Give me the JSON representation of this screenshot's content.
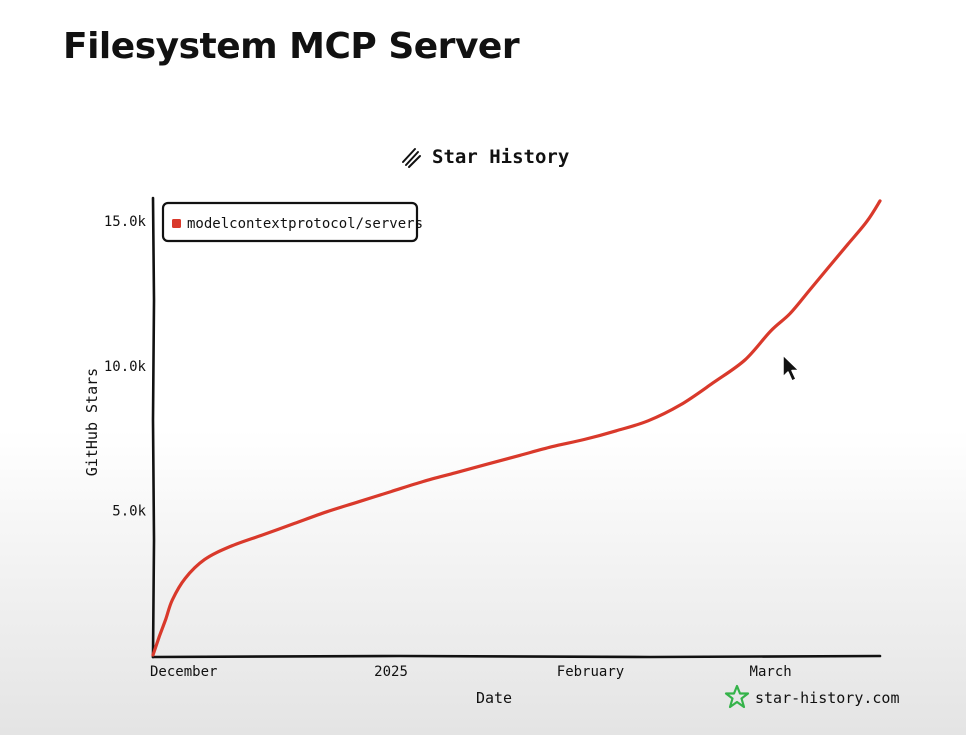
{
  "page": {
    "title": "Filesystem MCP Server"
  },
  "chart_data": {
    "type": "line",
    "title": "Star History",
    "xlabel": "Date",
    "ylabel": "GitHub Stars",
    "x_ticks": [
      "December",
      "2025",
      "February",
      "March"
    ],
    "y_ticks": [
      "5.0k",
      "10.0k",
      "15.0k"
    ],
    "ylim": [
      0,
      15800
    ],
    "xlim": [
      "2024-11-25",
      "2025-03-18"
    ],
    "grid": false,
    "legend_position": "top-left",
    "series": [
      {
        "name": "modelcontextprotocol/servers",
        "color": "#d9392b",
        "x": [
          "2024-11-25",
          "2024-11-26",
          "2024-11-27",
          "2024-11-28",
          "2024-11-30",
          "2024-12-03",
          "2024-12-07",
          "2024-12-12",
          "2024-12-17",
          "2024-12-22",
          "2024-12-27",
          "2025-01-01",
          "2025-01-06",
          "2025-01-11",
          "2025-01-16",
          "2025-01-21",
          "2025-01-26",
          "2025-01-31",
          "2025-02-05",
          "2025-02-10",
          "2025-02-15",
          "2025-02-20",
          "2025-02-25",
          "2025-03-01",
          "2025-03-04",
          "2025-03-07",
          "2025-03-10",
          "2025-03-13",
          "2025-03-16",
          "2025-03-18"
        ],
        "values": [
          0,
          650,
          1250,
          1900,
          2650,
          3300,
          3750,
          4150,
          4550,
          4950,
          5300,
          5650,
          6000,
          6300,
          6600,
          6900,
          7200,
          7450,
          7750,
          8100,
          8650,
          9400,
          10200,
          11200,
          11800,
          12600,
          13400,
          14200,
          15000,
          15700
        ]
      }
    ],
    "colors": {
      "line": "#d9392b",
      "axis": "#111111",
      "watermark_icon": "#35b34a"
    }
  },
  "watermark": {
    "icon": "star-outline-icon",
    "text": "star-history.com"
  },
  "header_icon": "star-history-logo-icon"
}
